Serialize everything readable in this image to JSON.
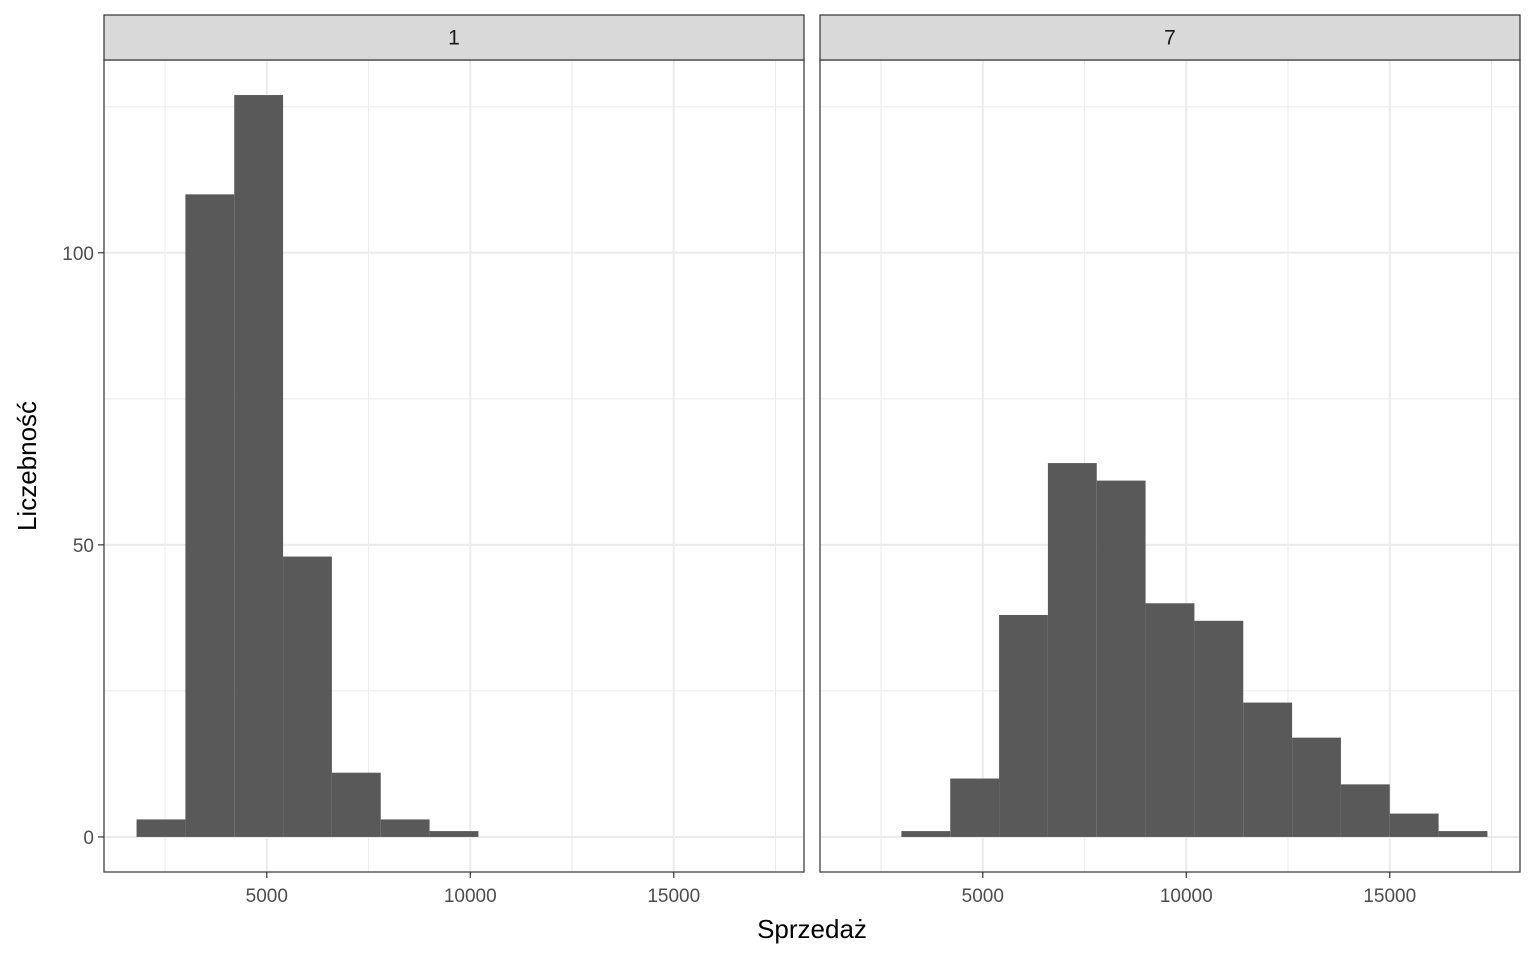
{
  "chart_data": {
    "type": "bar",
    "subtype": "histogram",
    "facet_layout": "1 row x 2 columns",
    "xlabel": "Sprzedaż",
    "ylabel": "Liczebność",
    "xlim": [
      1000,
      18200
    ],
    "ylim": [
      -6,
      133
    ],
    "x_ticks": [
      5000,
      10000,
      15000
    ],
    "y_ticks": [
      0,
      50,
      100
    ],
    "x_tick_labels": [
      "5000",
      "10000",
      "15000"
    ],
    "y_tick_labels": [
      "0",
      "50",
      "100"
    ],
    "grid": true,
    "bar_color": "#595959",
    "strip_color": "#d9d9d9",
    "grid_color": "#ebebeb",
    "panels": [
      {
        "label": "1",
        "bins": [
          {
            "x0": 1800,
            "x1": 3000,
            "count": 3
          },
          {
            "x0": 3000,
            "x1": 4200,
            "count": 110
          },
          {
            "x0": 4200,
            "x1": 5400,
            "count": 127
          },
          {
            "x0": 5400,
            "x1": 6600,
            "count": 48
          },
          {
            "x0": 6600,
            "x1": 7800,
            "count": 11
          },
          {
            "x0": 7800,
            "x1": 9000,
            "count": 3
          },
          {
            "x0": 9000,
            "x1": 10200,
            "count": 1
          }
        ]
      },
      {
        "label": "7",
        "bins": [
          {
            "x0": 3000,
            "x1": 4200,
            "count": 1
          },
          {
            "x0": 4200,
            "x1": 5400,
            "count": 10
          },
          {
            "x0": 5400,
            "x1": 6600,
            "count": 38
          },
          {
            "x0": 6600,
            "x1": 7800,
            "count": 64
          },
          {
            "x0": 7800,
            "x1": 9000,
            "count": 61
          },
          {
            "x0": 9000,
            "x1": 10200,
            "count": 40
          },
          {
            "x0": 10200,
            "x1": 11400,
            "count": 37
          },
          {
            "x0": 11400,
            "x1": 12600,
            "count": 23
          },
          {
            "x0": 12600,
            "x1": 13800,
            "count": 17
          },
          {
            "x0": 13800,
            "x1": 15000,
            "count": 9
          },
          {
            "x0": 15000,
            "x1": 16200,
            "count": 4
          },
          {
            "x0": 16200,
            "x1": 17400,
            "count": 1
          }
        ]
      }
    ]
  }
}
